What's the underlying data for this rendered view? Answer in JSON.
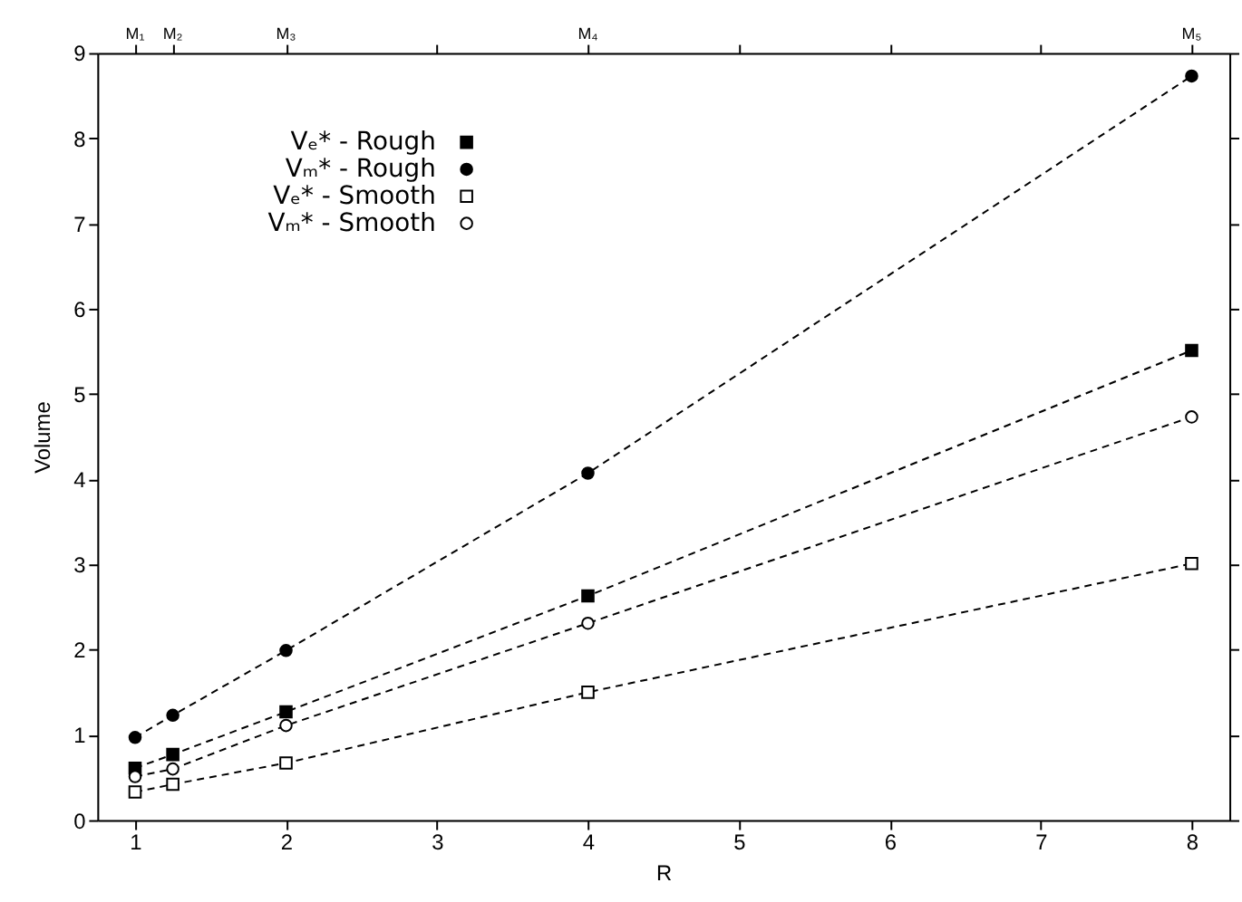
{
  "chart_data": {
    "type": "line",
    "xlabel": "R",
    "ylabel": "Volume",
    "x": [
      1,
      1.25,
      2,
      4,
      8
    ],
    "series": [
      {
        "name": "Vₑ* - Rough",
        "color": "#000000",
        "marker": "square",
        "values": [
          0.61,
          0.77,
          1.27,
          2.63,
          5.51
        ]
      },
      {
        "name": "Vₘ* - Rough",
        "color": "#000000",
        "marker": "circle",
        "values": [
          0.97,
          1.23,
          1.99,
          4.07,
          8.73
        ]
      },
      {
        "name": "Vₑ* - Smooth",
        "color": "#000000",
        "marker": "square-open",
        "values": [
          0.33,
          0.42,
          0.67,
          1.5,
          3.01
        ]
      },
      {
        "name": "Vₘ* - Smooth",
        "color": "#000000",
        "marker": "circle-open",
        "values": [
          0.51,
          0.6,
          1.11,
          2.31,
          4.73
        ]
      }
    ],
    "xlim": [
      0.75,
      8.25
    ],
    "xticks": [
      1,
      2,
      3,
      4,
      5,
      6,
      7,
      8
    ],
    "ylim": [
      0,
      9
    ],
    "yticks": [
      0,
      1,
      2,
      3,
      4,
      5,
      6,
      7,
      8,
      9
    ],
    "annotations": [
      "M₁",
      "M₂",
      "M₃",
      "M₄",
      "M₅"
    ],
    "line_style": "dashed",
    "grid": false,
    "legend": "top left"
  }
}
